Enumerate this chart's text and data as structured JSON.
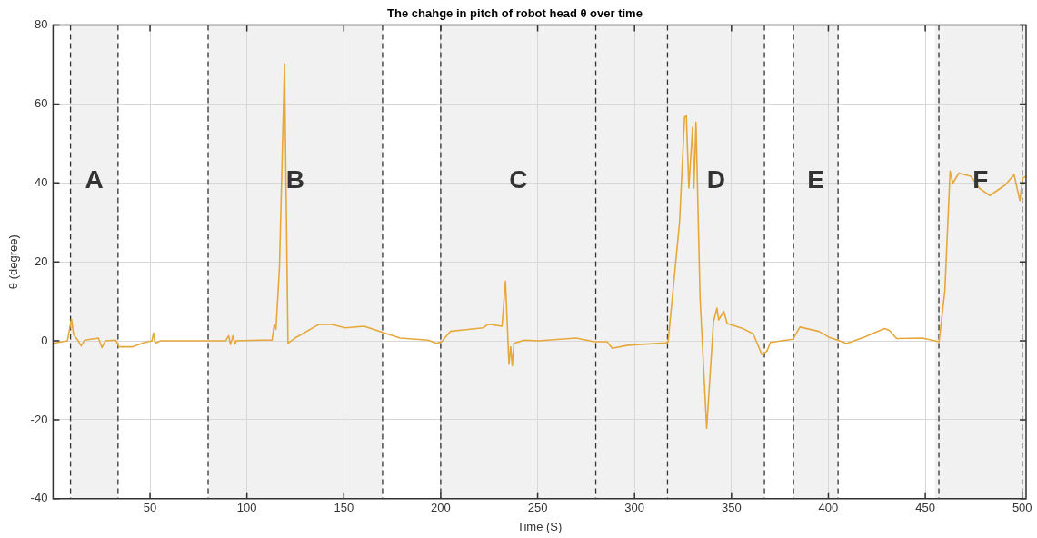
{
  "chart_data": {
    "type": "line",
    "title": "The chahge in pitch of robot head θ over time",
    "xlabel": "Time (S)",
    "ylabel": "θ (degree)",
    "xlim": [
      0,
      502
    ],
    "ylim": [
      -40,
      80
    ],
    "xticks": [
      50,
      100,
      150,
      200,
      250,
      300,
      350,
      400,
      450,
      500
    ],
    "yticks": [
      -40,
      -20,
      0,
      20,
      40,
      60,
      80
    ],
    "grid": true,
    "legend": false,
    "marker": "none",
    "line_style": "solid",
    "series": [
      {
        "color": "#e6a83a",
        "x": [
          0,
          7.4,
          8.3,
          9.5,
          10.6,
          12.7,
          14.5,
          16.3,
          23.4,
          25.2,
          27,
          32.3,
          34,
          41.2,
          46.5,
          51,
          51.8,
          52.7,
          55.4,
          78.5,
          89,
          90.6,
          91.5,
          92.8,
          93.9,
          94.5,
          107,
          113,
          114.1,
          115,
          116.8,
          119.4,
          121.2,
          124.8,
          137.2,
          143.4,
          150.7,
          160.5,
          169.7,
          179.1,
          193.4,
          197.8,
          200.5,
          204.9,
          221.8,
          224.5,
          231.6,
          233.4,
          235.2,
          236.1,
          236.9,
          237.8,
          243.2,
          250.3,
          269.8,
          279.3,
          285.8,
          288.5,
          296.5,
          316.1,
          317.3,
          323.2,
          325.8,
          326.7,
          328,
          329.9,
          330.6,
          331.7,
          333.8,
          337.2,
          340.7,
          342.5,
          343.4,
          346,
          347.8,
          355.9,
          361.2,
          365.7,
          368.3,
          370.1,
          381.7,
          385.3,
          395.1,
          400.4,
          405.8,
          409.3,
          418.2,
          429,
          431.6,
          435.2,
          448.5,
          457.1,
          460.1,
          462.8,
          464.2,
          467.3,
          473.5,
          478,
          483.3,
          491.3,
          495.8,
          498.8,
          500.2,
          502
        ],
        "values": [
          -0.6,
          0,
          2.4,
          5.5,
          1.6,
          0.2,
          -1.3,
          0.2,
          0.7,
          -1.7,
          0,
          0.2,
          -1.5,
          -1.5,
          -0.5,
          0,
          2,
          -0.6,
          0,
          0,
          0,
          1.3,
          -0.9,
          1.3,
          -0.8,
          0,
          0.2,
          0.2,
          4.2,
          2.9,
          18.6,
          70.2,
          -0.6,
          0.7,
          4.2,
          4.2,
          3.3,
          3.7,
          2.2,
          0.7,
          0.2,
          -0.6,
          -0.2,
          2.4,
          3.3,
          4.2,
          3.7,
          15.1,
          -5.9,
          -1.5,
          -6.3,
          -0.6,
          0.2,
          0,
          0.7,
          -0.2,
          -0.2,
          -1.9,
          -1.1,
          -0.5,
          -0.2,
          30,
          56.7,
          57.1,
          38.7,
          54.1,
          38.7,
          55.4,
          10.7,
          -22.2,
          4.8,
          8.3,
          5.3,
          7.5,
          4.4,
          3.1,
          1.8,
          -3.5,
          -2.6,
          -0.4,
          0.4,
          3.5,
          2.4,
          0.9,
          0,
          -0.7,
          0.9,
          3.1,
          2.6,
          0.6,
          0.7,
          -0.2,
          12.7,
          43,
          39.9,
          42.5,
          41.7,
          38.6,
          36.8,
          39.5,
          42.1,
          35.5,
          41.2,
          41.7
        ]
      }
    ],
    "bands": [
      {
        "axis": "x",
        "from": 9,
        "to": 33.5,
        "color": "#f1f1f1",
        "label": "A"
      },
      {
        "axis": "x",
        "from": 80,
        "to": 170,
        "color": "#f1f1f1",
        "label": "B"
      },
      {
        "axis": "x",
        "from": 200,
        "to": 280,
        "color": "#f1f1f1",
        "label": "C"
      },
      {
        "axis": "x",
        "from": 280,
        "to": 317,
        "color": "#f1f1f1"
      },
      {
        "axis": "x",
        "from": 317,
        "to": 367,
        "color": "#f1f1f1",
        "label": "D"
      },
      {
        "axis": "x",
        "from": 382,
        "to": 405,
        "color": "#f1f1f1",
        "label": "E"
      },
      {
        "axis": "x",
        "from": 455,
        "to": 502,
        "color": "#f1f1f1",
        "label": "F"
      }
    ],
    "ref_lines": [
      {
        "axis": "x",
        "value": 9,
        "color": "#333333",
        "line_style": "dashed"
      },
      {
        "axis": "x",
        "value": 33.5,
        "color": "#333333",
        "line_style": "dashed"
      },
      {
        "axis": "x",
        "value": 80,
        "color": "#333333",
        "line_style": "dashed"
      },
      {
        "axis": "x",
        "value": 170,
        "color": "#333333",
        "line_style": "dashed"
      },
      {
        "axis": "x",
        "value": 200,
        "color": "#333333",
        "line_style": "dashed"
      },
      {
        "axis": "x",
        "value": 280,
        "color": "#333333",
        "line_style": "dashed"
      },
      {
        "axis": "x",
        "value": 317,
        "color": "#333333",
        "line_style": "dashed"
      },
      {
        "axis": "x",
        "value": 367,
        "color": "#333333",
        "line_style": "dashed"
      },
      {
        "axis": "x",
        "value": 382,
        "color": "#333333",
        "line_style": "dashed"
      },
      {
        "axis": "x",
        "value": 405,
        "color": "#333333",
        "line_style": "dashed"
      },
      {
        "axis": "x",
        "value": 457,
        "color": "#333333",
        "line_style": "dashed"
      },
      {
        "axis": "x",
        "value": 500,
        "color": "#333333",
        "line_style": "dashed"
      }
    ]
  }
}
